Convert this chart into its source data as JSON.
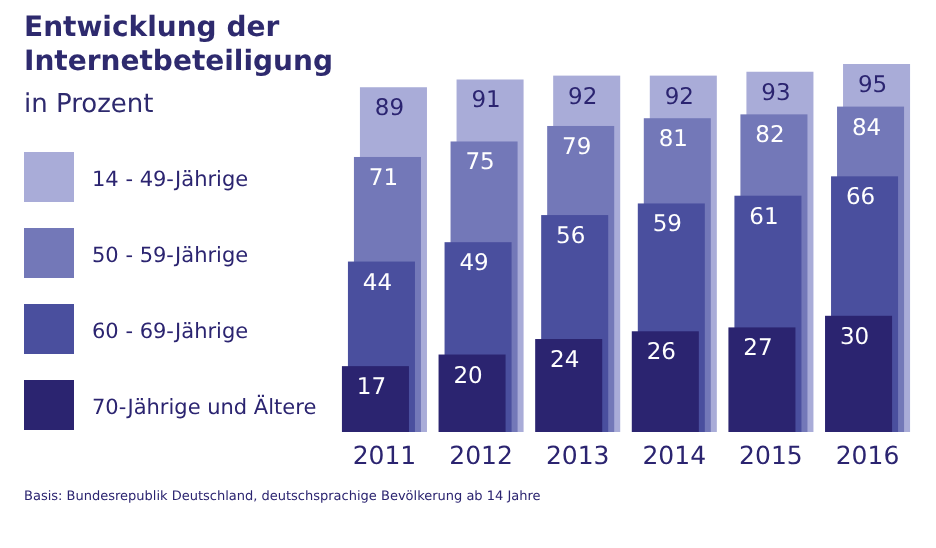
{
  "chart_data": {
    "type": "bar",
    "title": "Entwicklung der Internetbeteiligung",
    "subtitle": "in Prozent",
    "categories": [
      "2011",
      "2012",
      "2013",
      "2014",
      "2015",
      "2016"
    ],
    "series": [
      {
        "name": "14 - 49-Jährige",
        "color": "#a9acd8",
        "values": [
          89,
          91,
          92,
          92,
          93,
          95
        ]
      },
      {
        "name": "50 - 59-Jährige",
        "color": "#7378b8",
        "values": [
          71,
          75,
          79,
          81,
          82,
          84
        ]
      },
      {
        "name": "60 - 69-Jährige",
        "color": "#4a4f9e",
        "values": [
          44,
          49,
          56,
          59,
          61,
          66
        ]
      },
      {
        "name": "70-Jährige und Ältere",
        "color": "#2b2470",
        "values": [
          17,
          20,
          24,
          26,
          27,
          30
        ]
      }
    ],
    "data_labels": true,
    "legend": "left",
    "annotations": [
      "Basis: Bundesrepublik Deutschland, deutschsprachige Bevölkerung ab 14 Jahre"
    ]
  }
}
